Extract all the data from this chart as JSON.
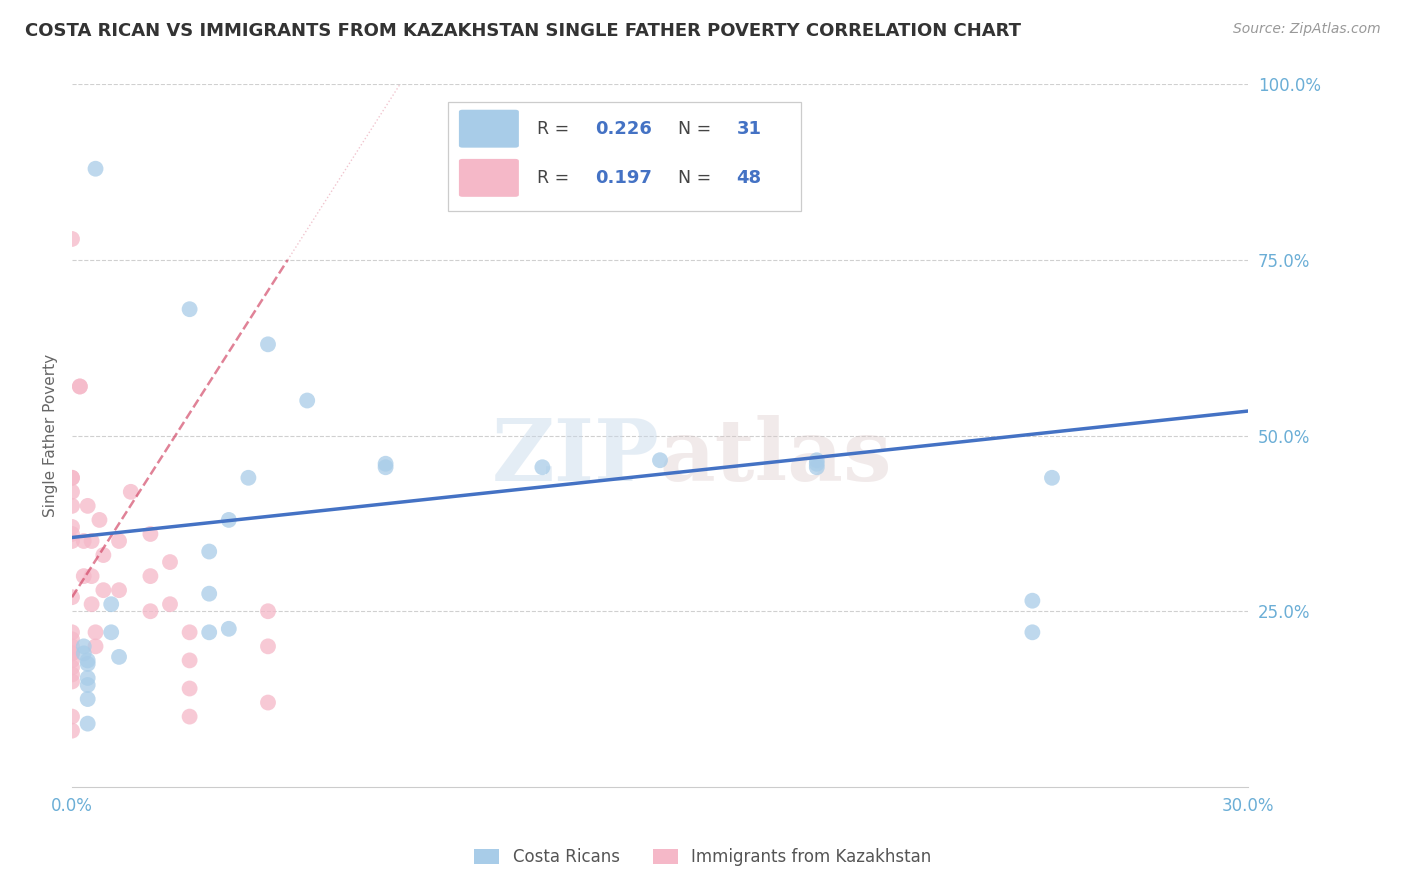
{
  "title": "COSTA RICAN VS IMMIGRANTS FROM KAZAKHSTAN SINGLE FATHER POVERTY CORRELATION CHART",
  "source": "Source: ZipAtlas.com",
  "ylabel": "Single Father Poverty",
  "xlim": [
    0.0,
    0.3
  ],
  "ylim": [
    0.0,
    1.0
  ],
  "blue_R": 0.226,
  "blue_N": 31,
  "pink_R": 0.197,
  "pink_N": 48,
  "blue_label": "Costa Ricans",
  "pink_label": "Immigrants from Kazakhstan",
  "background_color": "#ffffff",
  "grid_color": "#d0d0d0",
  "blue_color": "#a8cce8",
  "pink_color": "#f5b8c8",
  "blue_line_color": "#4472c4",
  "pink_line_color": "#d04060",
  "axis_color": "#6baed6",
  "title_color": "#333333",
  "label_color": "#555555",
  "blue_scatter_x": [
    0.006,
    0.03,
    0.05,
    0.06,
    0.045,
    0.08,
    0.08,
    0.12,
    0.15,
    0.003,
    0.003,
    0.004,
    0.004,
    0.004,
    0.004,
    0.004,
    0.004,
    0.01,
    0.01,
    0.012,
    0.035,
    0.035,
    0.035,
    0.04,
    0.04,
    0.19,
    0.19,
    0.19,
    0.25,
    0.245,
    0.245
  ],
  "blue_scatter_y": [
    0.88,
    0.68,
    0.63,
    0.55,
    0.44,
    0.455,
    0.46,
    0.455,
    0.465,
    0.2,
    0.19,
    0.18,
    0.175,
    0.155,
    0.145,
    0.125,
    0.09,
    0.26,
    0.22,
    0.185,
    0.335,
    0.275,
    0.22,
    0.38,
    0.225,
    0.455,
    0.46,
    0.465,
    0.44,
    0.265,
    0.22
  ],
  "pink_scatter_x": [
    0.0,
    0.0,
    0.0,
    0.0,
    0.0,
    0.0,
    0.0,
    0.0,
    0.0,
    0.0,
    0.0,
    0.0,
    0.0,
    0.0,
    0.0,
    0.0,
    0.0,
    0.0,
    0.0,
    0.0,
    0.002,
    0.002,
    0.003,
    0.003,
    0.004,
    0.005,
    0.005,
    0.005,
    0.006,
    0.006,
    0.007,
    0.008,
    0.008,
    0.012,
    0.012,
    0.015,
    0.02,
    0.02,
    0.02,
    0.025,
    0.025,
    0.03,
    0.03,
    0.03,
    0.03,
    0.05,
    0.05,
    0.05
  ],
  "pink_scatter_y": [
    0.78,
    0.44,
    0.44,
    0.42,
    0.4,
    0.37,
    0.36,
    0.35,
    0.27,
    0.22,
    0.21,
    0.2,
    0.19,
    0.19,
    0.18,
    0.17,
    0.16,
    0.15,
    0.1,
    0.08,
    0.57,
    0.57,
    0.35,
    0.3,
    0.4,
    0.35,
    0.3,
    0.26,
    0.22,
    0.2,
    0.38,
    0.33,
    0.28,
    0.35,
    0.28,
    0.42,
    0.36,
    0.3,
    0.25,
    0.32,
    0.26,
    0.22,
    0.18,
    0.14,
    0.1,
    0.25,
    0.2,
    0.12
  ],
  "blue_line_x0": 0.0,
  "blue_line_y0": 0.355,
  "blue_line_x1": 0.3,
  "blue_line_y1": 0.535,
  "pink_line_x0": 0.0,
  "pink_line_y0": 0.27,
  "pink_line_x1": 0.055,
  "pink_line_y1": 0.75
}
